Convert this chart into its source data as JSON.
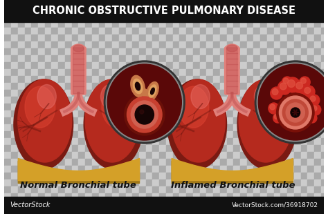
{
  "title": "CHRONIC OBSTRUCTIVE PULMONARY DISEASE",
  "title_bg": "#111111",
  "title_color": "#ffffff",
  "title_fontsize": 10.5,
  "label_left": "Normal Bronchial tube",
  "label_right": "Inflamed Bronchial tube",
  "label_color": "#111111",
  "label_fontsize": 9.5,
  "bg_checker_light": "#cccccc",
  "bg_checker_dark": "#aaaaaa",
  "bottom_bar_color": "#111111",
  "bottom_text_left": "VectorStock",
  "bottom_text_right": "VectorStock.com/36918702",
  "bottom_text_color": "#ffffff",
  "lung_dark": "#7a1a12",
  "lung_mid": "#b52a1e",
  "lung_bright": "#d94030",
  "lung_light": "#e8706a",
  "trachea_color": "#e0807a",
  "trachea_dark": "#c05050",
  "diaphragm_color": "#d4a028",
  "diaphragm_shadow": "#a07818",
  "vein_color": "#6a1010",
  "circle_border_outer": "#444444",
  "circle_border_inner": "#666666",
  "circle_bg": "#5a0808",
  "normal_wall_outer": "#8b1a10",
  "normal_wall_mid": "#d05040",
  "normal_lumen": "#0a0404",
  "inflamed_wall_outer": "#9b2010",
  "inflamed_wall_thick": "#e08878",
  "inflamed_wall_red": "#c03020",
  "inflamed_lumen": "#0a0404",
  "bubble_color": "#cc3030",
  "mucus_color": "#e07050"
}
